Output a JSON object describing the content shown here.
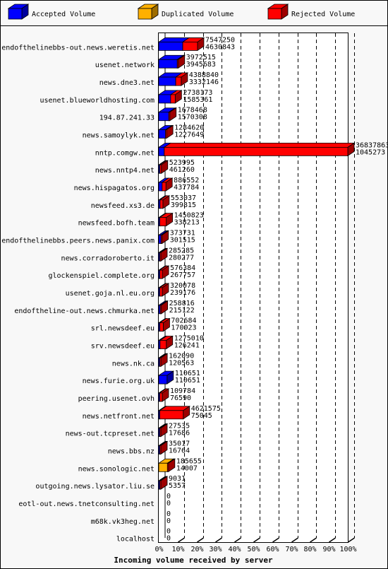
{
  "chart_data": {
    "type": "bar",
    "orientation": "horizontal",
    "title": "",
    "xlabel": "Incoming volume received by server",
    "ylabel": "",
    "xlim": [
      0,
      100
    ],
    "x_unit": "%",
    "x_ticks": [
      "0%",
      "10%",
      "20%",
      "30%",
      "40%",
      "50%",
      "60%",
      "70%",
      "80%",
      "90%",
      "100%"
    ],
    "legend_position": "top",
    "legend": [
      {
        "name": "Accepted Volume",
        "color": "#0000ff"
      },
      {
        "name": "Duplicated Volume",
        "color": "#ffb000"
      },
      {
        "name": "Rejected Volume",
        "color": "#ff0000"
      }
    ],
    "categories": [
      "endofthelinebbs-out.news.weretis.net",
      "usenet.network",
      "news.dne3.net",
      "usenet.blueworldhosting.com",
      "194.87.241.33",
      "news.samoylyk.net",
      "nntp.comgw.net",
      "news.nntp4.net",
      "news.hispagatos.org",
      "newsfeed.xs3.de",
      "newsfeed.bofh.team",
      "endofthelinebbs.peers.news.panix.com",
      "news.corradoroberto.it",
      "glockenspiel.complete.org",
      "usenet.goja.nl.eu.org",
      "endoftheline-out.news.chmurka.net",
      "srl.newsdeef.eu",
      "srv.newsdeef.eu",
      "news.nk.ca",
      "news.furie.org.uk",
      "peering.usenet.ovh",
      "news.netfront.net",
      "news-out.tcpreset.net",
      "news.bbs.nz",
      "news.sonologic.net",
      "outgoing.news.lysator.liu.se",
      "eotl-out.news.tnetconsulting.net",
      "m68k.vk3heg.net",
      "localhost"
    ],
    "series": [
      {
        "name": "Accepted Volume",
        "color": "#0000ff",
        "values": [
          12.7,
          9.8,
          9.0,
          6.3,
          5.3,
          3.6,
          2.9,
          0.6,
          1.8,
          0.7,
          0.5,
          1.2,
          0.1,
          0.6,
          0.4,
          0.8,
          0.6,
          0.7,
          0.2,
          4.4,
          0.3,
          0.2,
          0.1,
          0.3,
          0.0,
          0.2,
          0,
          0,
          0
        ]
      },
      {
        "name": "Duplicated Volume",
        "color": "#ffb000",
        "values": [
          0,
          0,
          0,
          0,
          0,
          0,
          0,
          0,
          0,
          0,
          0,
          0,
          0,
          0,
          0,
          0,
          0,
          0,
          0,
          0,
          0,
          0,
          0,
          0,
          4.6,
          0,
          0,
          0,
          0
        ]
      },
      {
        "name": "Rejected Volume",
        "color": "#ff0000",
        "values": [
          7.8,
          0.1,
          2.9,
          2.4,
          0.4,
          0.3,
          97.1,
          0.8,
          2.0,
          1.5,
          3.4,
          0.3,
          0.4,
          1.3,
          1.3,
          0.5,
          1.8,
          3.3,
          0.6,
          0.0,
          1.3,
          12.4,
          0.1,
          0.4,
          0.1,
          0.1,
          0,
          0,
          0
        ]
      }
    ],
    "volume_labels": [
      [
        "7547250",
        "4630843"
      ],
      [
        "3972515",
        "3945683"
      ],
      [
        "4388840",
        "3332146"
      ],
      [
        "2738173",
        "1585361"
      ],
      [
        "1678468",
        "1570308"
      ],
      [
        "1284620",
        "1227649"
      ],
      [
        "36837863",
        "1045273"
      ],
      [
        "523995",
        "461260"
      ],
      [
        "886552",
        "437784"
      ],
      [
        "553037",
        "399815"
      ],
      [
        "1450823",
        "338213"
      ],
      [
        "373731",
        "301515"
      ],
      [
        "285285",
        "280277"
      ],
      [
        "576384",
        "267757"
      ],
      [
        "320078",
        "239176"
      ],
      [
        "258816",
        "215122"
      ],
      [
        "702684",
        "170023"
      ],
      [
        "1275010",
        "126241"
      ],
      [
        "162090",
        "120563"
      ],
      [
        "110651",
        "110651"
      ],
      [
        "109784",
        "76590"
      ],
      [
        "4621575",
        "75045"
      ],
      [
        "27535",
        "17686"
      ],
      [
        "35017",
        "16764"
      ],
      [
        "185655",
        "14007"
      ],
      [
        "9031",
        "5357"
      ],
      [
        "0",
        "0"
      ],
      [
        "0",
        "0"
      ],
      [
        "0",
        "0"
      ]
    ]
  }
}
